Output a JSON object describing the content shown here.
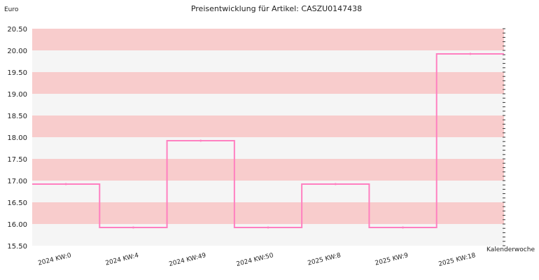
{
  "chart_data": {
    "type": "line",
    "title": "Preisentwicklung für Artikel: CASZU0147438",
    "ylabel": "Euro",
    "xlabel": "Kalenderwoche",
    "ylim": [
      15.5,
      20.5
    ],
    "y_ticks": [
      "20.50",
      "20.00",
      "19.50",
      "19.00",
      "18.50",
      "18.00",
      "17.50",
      "17.00",
      "16.50",
      "16.00",
      "15.50"
    ],
    "categories": [
      "2024 KW:0",
      "2024 KW:4",
      "2024 KW:49",
      "2024 KW:50",
      "2025 KW:8",
      "2025 KW:9",
      "2025 KW:18"
    ],
    "step": true,
    "series": [
      {
        "values": [
          16.92,
          15.92,
          17.92,
          15.92,
          16.92,
          15.92,
          19.92
        ]
      }
    ],
    "colors": {
      "line": "#ff80c0",
      "band_a": "#f8cccc",
      "band_b": "#f5f5f5"
    },
    "grid": true
  }
}
